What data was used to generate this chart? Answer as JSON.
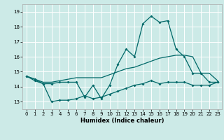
{
  "xlabel": "Humidex (Indice chaleur)",
  "xlim": [
    -0.5,
    23.5
  ],
  "ylim": [
    12.5,
    19.5
  ],
  "yticks": [
    13,
    14,
    15,
    16,
    17,
    18,
    19
  ],
  "xticks": [
    0,
    1,
    2,
    3,
    4,
    5,
    6,
    7,
    8,
    9,
    10,
    11,
    12,
    13,
    14,
    15,
    16,
    17,
    18,
    19,
    20,
    21,
    22,
    23
  ],
  "bg_color": "#cceae7",
  "grid_color": "#ffffff",
  "line_color": "#006868",
  "line1_y": [
    14.7,
    14.5,
    14.2,
    14.2,
    14.3,
    14.3,
    14.3,
    13.3,
    14.1,
    13.2,
    14.1,
    15.5,
    16.5,
    16.0,
    18.2,
    18.7,
    18.3,
    18.4,
    16.5,
    16.0,
    14.9,
    14.9,
    14.3,
    14.3
  ],
  "line2_y": [
    14.7,
    14.5,
    14.3,
    14.3,
    14.4,
    14.5,
    14.6,
    14.6,
    14.6,
    14.6,
    14.8,
    15.0,
    15.2,
    15.3,
    15.5,
    15.7,
    15.9,
    16.0,
    16.1,
    16.1,
    16.0,
    14.9,
    14.9,
    14.4
  ],
  "line3_y": [
    14.7,
    14.4,
    14.2,
    13.0,
    13.1,
    13.1,
    13.2,
    13.4,
    13.2,
    13.3,
    13.5,
    13.7,
    13.9,
    14.1,
    14.2,
    14.4,
    14.2,
    14.3,
    14.3,
    14.3,
    14.1,
    14.1,
    14.1,
    14.3
  ]
}
